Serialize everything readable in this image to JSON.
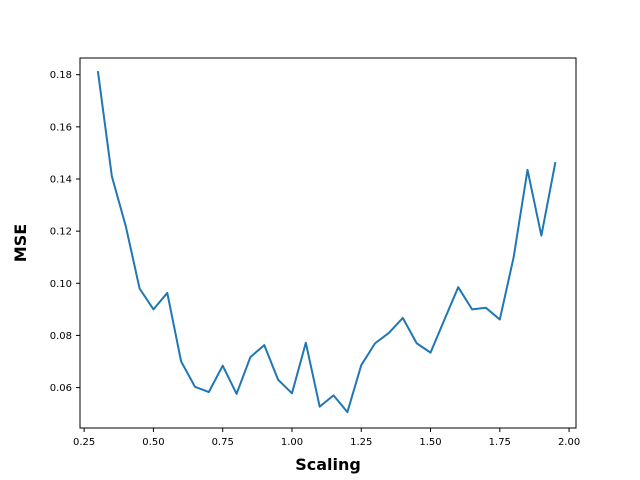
{
  "chart_data": {
    "type": "line",
    "title": "",
    "xlabel": "Scaling",
    "ylabel": "MSE",
    "xlim": [
      0.235,
      2.025
    ],
    "ylim": [
      0.0445,
      0.1864
    ],
    "xticks": [
      0.25,
      0.5,
      0.75,
      1.0,
      1.25,
      1.5,
      1.75,
      2.0
    ],
    "xtick_labels": [
      "0.25",
      "0.50",
      "0.75",
      "1.00",
      "1.25",
      "1.50",
      "1.75",
      "2.00"
    ],
    "yticks": [
      0.06,
      0.08,
      0.1,
      0.12,
      0.14,
      0.16,
      0.18
    ],
    "ytick_labels": [
      "0.06",
      "0.08",
      "0.10",
      "0.12",
      "0.14",
      "0.16",
      "0.18"
    ],
    "grid": false,
    "line_color": "#1f77b4",
    "x": [
      0.3,
      0.35,
      0.4,
      0.45,
      0.5,
      0.55,
      0.6,
      0.65,
      0.7,
      0.75,
      0.8,
      0.85,
      0.9,
      0.95,
      1.0,
      1.05,
      1.1,
      1.15,
      1.2,
      1.25,
      1.3,
      1.35,
      1.4,
      1.45,
      1.5,
      1.55,
      1.6,
      1.65,
      1.7,
      1.75,
      1.8,
      1.85,
      1.9,
      1.95
    ],
    "series": [
      {
        "values": [
          0.181,
          0.141,
          0.122,
          0.098,
          0.09,
          0.0963,
          0.07,
          0.0603,
          0.0583,
          0.0684,
          0.0576,
          0.0717,
          0.0763,
          0.063,
          0.0578,
          0.0772,
          0.0527,
          0.057,
          0.0506,
          0.0686,
          0.077,
          0.081,
          0.0867,
          0.077,
          0.0734,
          0.086,
          0.0985,
          0.09,
          0.0906,
          0.0861,
          0.11,
          0.1435,
          0.1183,
          0.1461
        ]
      }
    ]
  }
}
